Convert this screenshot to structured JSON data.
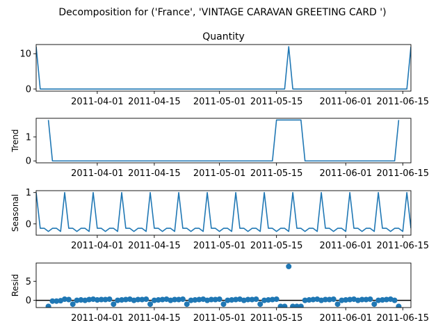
{
  "figure": {
    "suptitle": "Decomposition for ('France', 'VINTAGE CARAVAN GREETING CARD ')",
    "line_color": "#1f77b4",
    "background": "#ffffff"
  },
  "chart_data": [
    {
      "type": "line",
      "title": "Quantity",
      "ylabel": "",
      "x_range": [
        "2011-03-17",
        "2011-06-17"
      ],
      "ylim": [
        -0.6,
        12.6
      ],
      "yticks": [
        0,
        10
      ],
      "xticks": [
        "2011-04-01",
        "2011-04-15",
        "2011-05-01",
        "2011-05-15",
        "2011-06-01",
        "2011-06-15"
      ],
      "series": [
        {
          "x": [
            "2011-03-17",
            "2011-03-18",
            "2011-05-17",
            "2011-05-18",
            "2011-05-19",
            "2011-06-16",
            "2011-06-17"
          ],
          "y": [
            12,
            0,
            0,
            12,
            0,
            0,
            12
          ]
        }
      ]
    },
    {
      "type": "line",
      "title": "",
      "ylabel": "Trend",
      "x_range": [
        "2011-03-17",
        "2011-06-17"
      ],
      "ylim": [
        -0.08,
        1.78
      ],
      "yticks": [
        0,
        1
      ],
      "xticks": [
        "2011-04-01",
        "2011-04-15",
        "2011-05-01",
        "2011-05-15",
        "2011-06-01",
        "2011-06-15"
      ],
      "series": [
        {
          "x": [
            "2011-03-20",
            "2011-03-21",
            "2011-05-14",
            "2011-05-15",
            "2011-05-21",
            "2011-05-22",
            "2011-06-13",
            "2011-06-14"
          ],
          "y": [
            1.71,
            0,
            0,
            1.71,
            1.71,
            0,
            0,
            1.71
          ]
        }
      ]
    },
    {
      "type": "line",
      "title": "",
      "ylabel": "Seasonal",
      "x_range": [
        "2011-03-17",
        "2011-06-17"
      ],
      "ylim": [
        -0.36,
        1.06
      ],
      "yticks": [
        0,
        1
      ],
      "xticks": [
        "2011-04-01",
        "2011-04-15",
        "2011-05-01",
        "2011-05-15",
        "2011-06-01",
        "2011-06-15"
      ],
      "series": [
        {
          "x_start": "2011-03-17",
          "period_pattern": [
            1.0,
            -0.14,
            -0.14,
            -0.24,
            -0.14,
            -0.14,
            -0.24
          ],
          "n_points": 93
        }
      ]
    },
    {
      "type": "scatter",
      "title": "",
      "ylabel": "Resid",
      "x_range": [
        "2011-03-17",
        "2011-06-17"
      ],
      "ylim": [
        -1.9,
        9.8
      ],
      "yticks": [
        0,
        5
      ],
      "xticks": [
        "2011-04-01",
        "2011-04-15",
        "2011-05-01",
        "2011-05-15",
        "2011-06-01",
        "2011-06-15"
      ],
      "hline": 0,
      "series": [
        {
          "x": [
            "2011-03-20",
            "2011-03-21",
            "2011-03-22",
            "2011-03-23",
            "2011-03-24",
            "2011-03-25",
            "2011-03-26",
            "2011-03-27",
            "2011-03-28",
            "2011-03-29",
            "2011-03-30",
            "2011-03-31",
            "2011-04-01",
            "2011-04-02",
            "2011-04-03",
            "2011-04-04",
            "2011-04-05",
            "2011-04-06",
            "2011-04-07",
            "2011-04-08",
            "2011-04-09",
            "2011-04-10",
            "2011-04-11",
            "2011-04-12",
            "2011-04-13",
            "2011-04-14",
            "2011-04-15",
            "2011-04-16",
            "2011-04-17",
            "2011-04-18",
            "2011-04-19",
            "2011-04-20",
            "2011-04-21",
            "2011-04-22",
            "2011-04-23",
            "2011-04-24",
            "2011-04-25",
            "2011-04-26",
            "2011-04-27",
            "2011-04-28",
            "2011-04-29",
            "2011-04-30",
            "2011-05-01",
            "2011-05-02",
            "2011-05-03",
            "2011-05-04",
            "2011-05-05",
            "2011-05-06",
            "2011-05-07",
            "2011-05-08",
            "2011-05-09",
            "2011-05-10",
            "2011-05-11",
            "2011-05-12",
            "2011-05-13",
            "2011-05-14",
            "2011-05-15",
            "2011-05-16",
            "2011-05-17",
            "2011-05-18",
            "2011-05-19",
            "2011-05-20",
            "2011-05-21",
            "2011-05-22",
            "2011-05-23",
            "2011-05-24",
            "2011-05-25",
            "2011-05-26",
            "2011-05-27",
            "2011-05-28",
            "2011-05-29",
            "2011-05-30",
            "2011-05-31",
            "2011-06-01",
            "2011-06-02",
            "2011-06-03",
            "2011-06-04",
            "2011-06-05",
            "2011-06-06",
            "2011-06-07",
            "2011-06-08",
            "2011-06-09",
            "2011-06-10",
            "2011-06-11",
            "2011-06-12",
            "2011-06-13",
            "2011-06-14"
          ],
          "y": [
            -1.6,
            -0.2,
            -0.2,
            -0.1,
            0.3,
            0.2,
            -1.0,
            0.0,
            0.1,
            0.0,
            0.2,
            0.3,
            0.1,
            0.2,
            0.2,
            0.3,
            -1.0,
            0.0,
            0.1,
            0.2,
            0.3,
            0.0,
            0.2,
            0.2,
            0.3,
            -1.0,
            0.0,
            0.1,
            0.2,
            0.3,
            0.0,
            0.2,
            0.2,
            0.3,
            -1.0,
            0.0,
            0.1,
            0.2,
            0.3,
            0.0,
            0.2,
            0.2,
            0.3,
            -1.0,
            0.0,
            0.1,
            0.2,
            0.3,
            0.0,
            0.2,
            0.2,
            0.3,
            -1.0,
            0.0,
            0.1,
            0.2,
            0.3,
            -1.6,
            -1.6,
            8.9,
            -1.6,
            -1.6,
            -1.6,
            0.0,
            0.1,
            0.2,
            0.3,
            0.0,
            0.2,
            0.2,
            0.3,
            -1.0,
            0.0,
            0.1,
            0.2,
            0.3,
            0.0,
            0.2,
            0.2,
            0.3,
            -1.0,
            0.0,
            0.1,
            0.2,
            0.3,
            0.0,
            -1.6
          ]
        }
      ]
    }
  ]
}
